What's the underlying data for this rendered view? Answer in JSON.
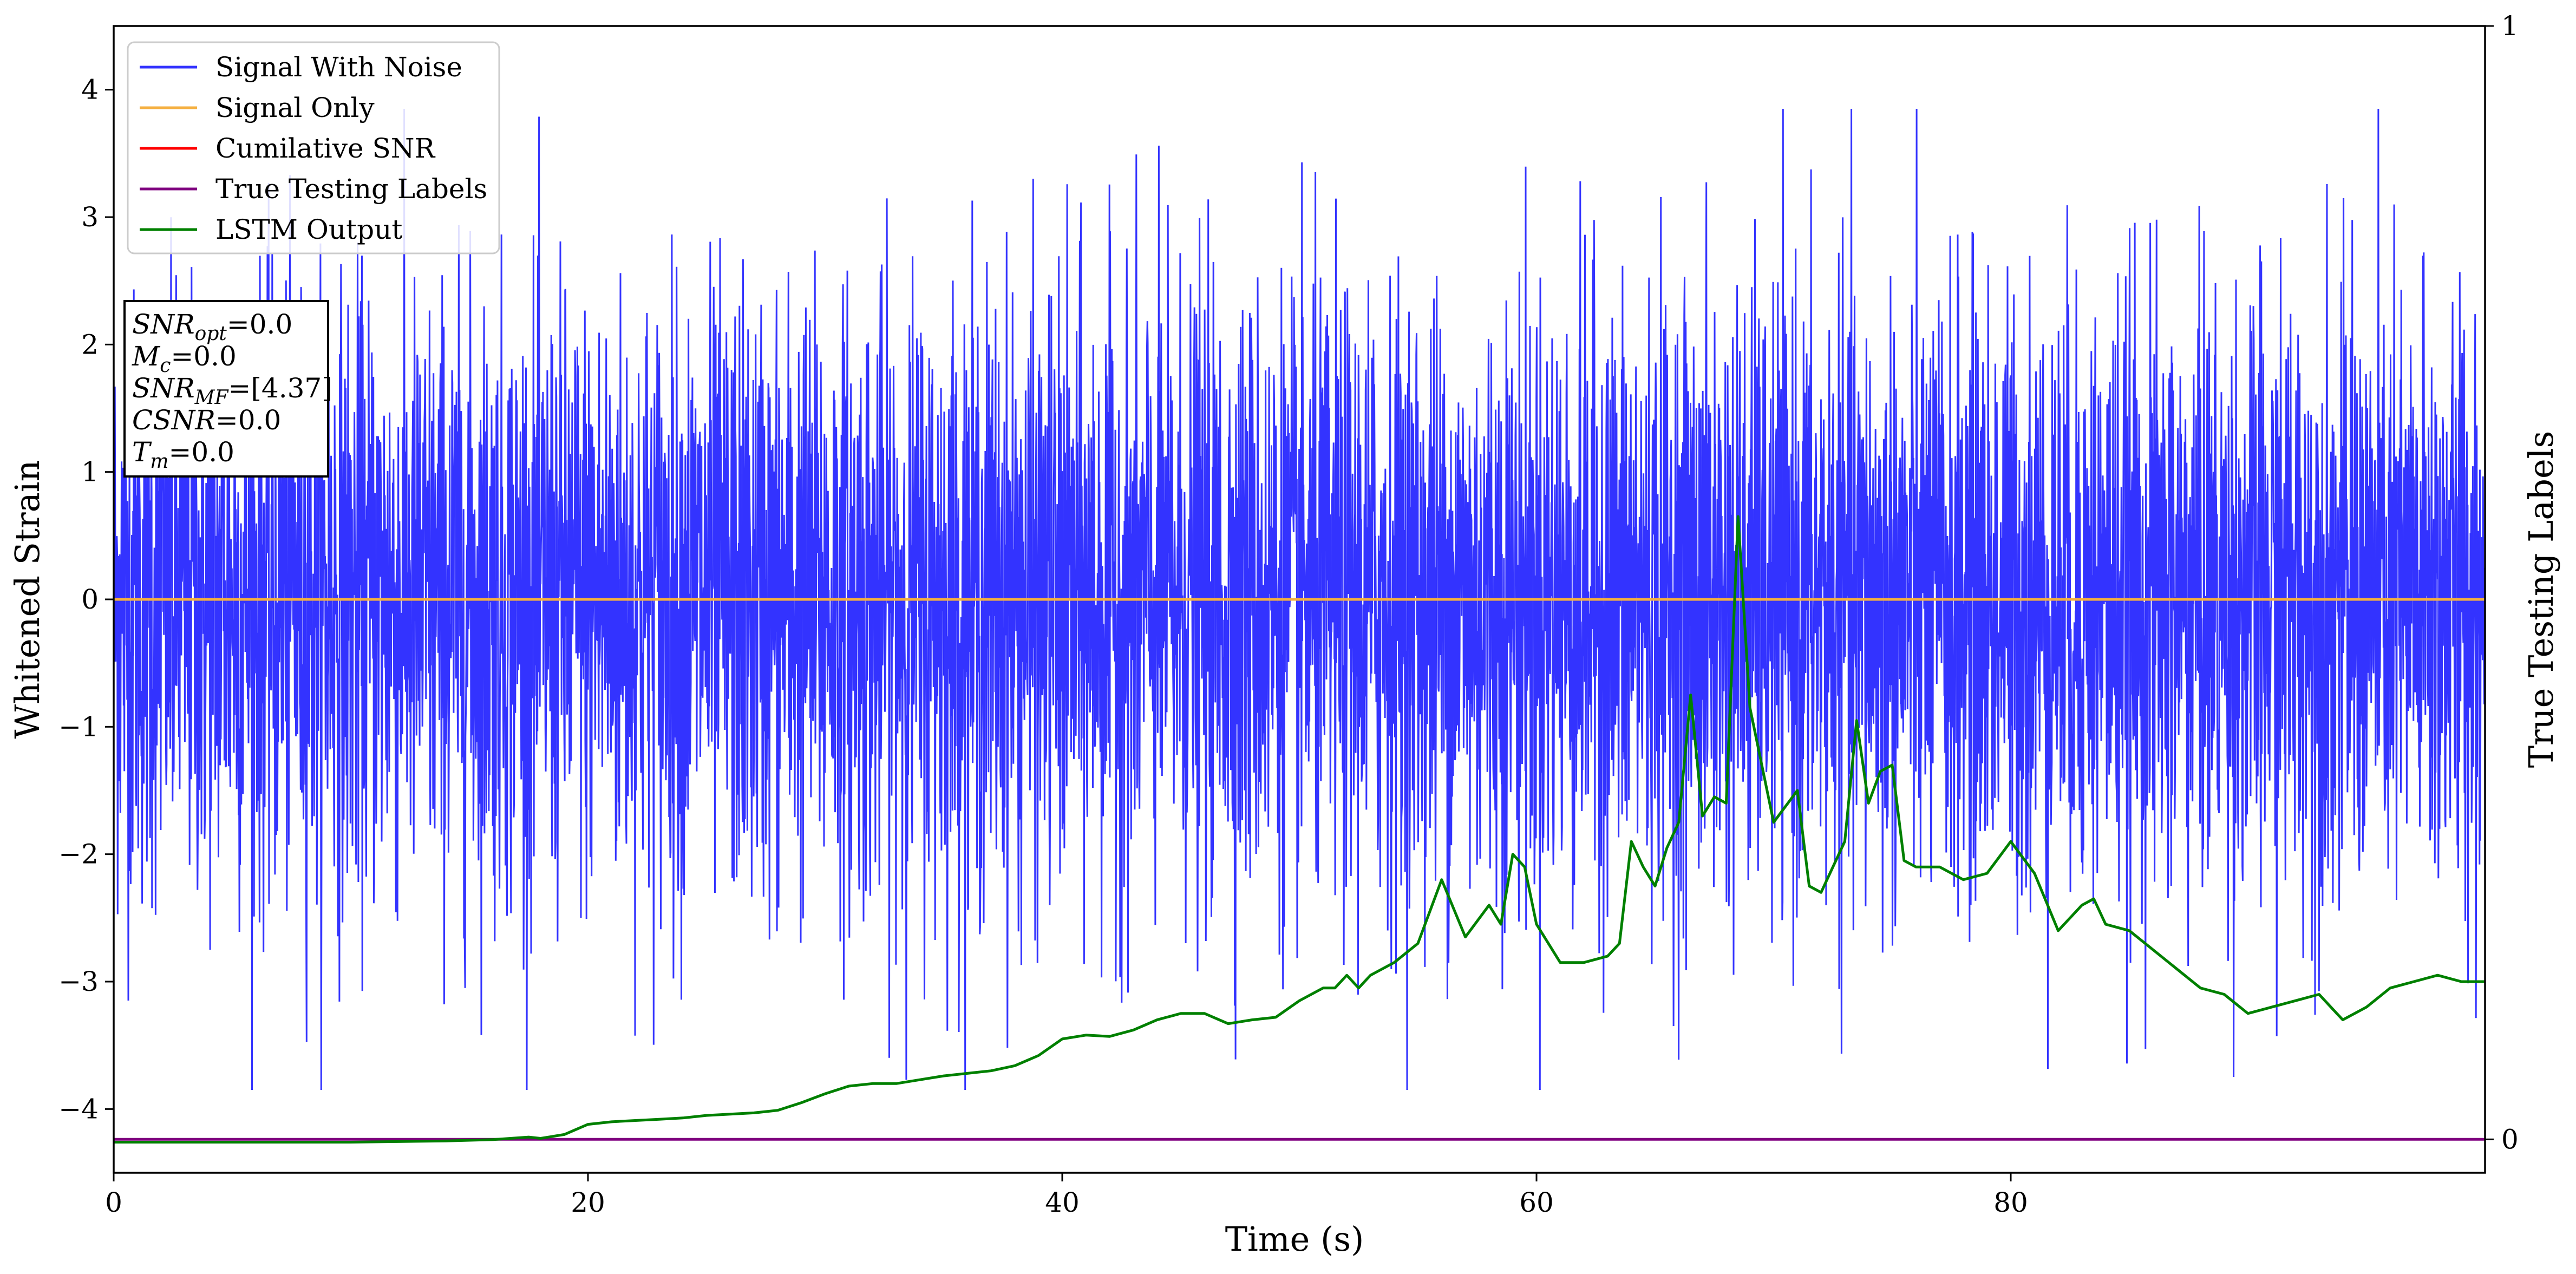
{
  "chart_data": {
    "type": "line",
    "xlabel": "Time (s)",
    "ylabel": "Whitened Strain",
    "y2label": "True Testing Labels",
    "xlim": [
      0,
      100
    ],
    "ylim": [
      -4.5,
      4.5
    ],
    "y2lim": [
      -0.03,
      1.0
    ],
    "x_ticks": [
      0,
      20,
      40,
      60,
      80
    ],
    "y_ticks": [
      -4,
      -3,
      -2,
      -1,
      0,
      1,
      2,
      3,
      4
    ],
    "y2_ticks": [
      0,
      1
    ],
    "legend_position": "upper-left",
    "series": [
      {
        "name": "Signal With Noise",
        "color": "#3333ff",
        "axis": "left",
        "description_values": {
          "center": 0.0,
          "typical_amplitude": 1.2,
          "max_peak": 3.85,
          "min_peak": -3.85
        }
      },
      {
        "name": "Signal Only",
        "color": "#f5b041",
        "axis": "left",
        "x": [
          0,
          100
        ],
        "y": [
          0,
          0
        ]
      },
      {
        "name": "Cumilative SNR",
        "color": "#ff0000",
        "axis": "left",
        "x": [
          0,
          100
        ],
        "y": [
          0,
          0
        ]
      },
      {
        "name": "True Testing Labels",
        "color": "#800080",
        "axis": "right",
        "x": [
          0,
          100
        ],
        "y": [
          0,
          0
        ]
      },
      {
        "name": "LSTM Output",
        "color": "#008000",
        "axis": "left",
        "x": [
          0,
          5,
          10,
          14,
          16,
          17.5,
          18,
          19,
          20,
          21,
          22,
          23,
          24,
          25,
          26,
          27,
          28,
          29,
          30,
          31,
          32,
          33,
          34,
          35,
          36,
          37,
          38,
          39,
          40,
          41,
          42,
          43,
          44,
          45,
          46,
          47,
          48,
          49,
          50,
          51,
          51.5,
          52,
          52.5,
          53,
          54,
          55,
          56,
          57,
          58,
          58.5,
          59,
          59.5,
          60,
          61,
          62,
          63,
          63.5,
          64,
          64.5,
          65,
          65.5,
          66,
          66.5,
          67,
          67.5,
          68,
          68.5,
          69,
          70,
          71,
          71.5,
          72,
          73,
          73.5,
          74,
          74.5,
          75,
          75.5,
          76,
          77,
          78,
          79,
          80,
          81,
          82,
          83,
          83.5,
          84,
          85,
          86,
          87,
          88,
          89,
          90,
          91,
          92,
          93,
          94,
          95,
          96,
          97,
          98,
          99,
          100
        ],
        "y": [
          -4.26,
          -4.26,
          -4.26,
          -4.25,
          -4.24,
          -4.22,
          -4.23,
          -4.2,
          -4.12,
          -4.1,
          -4.09,
          -4.08,
          -4.07,
          -4.05,
          -4.04,
          -4.03,
          -4.01,
          -3.95,
          -3.88,
          -3.82,
          -3.8,
          -3.8,
          -3.77,
          -3.74,
          -3.72,
          -3.7,
          -3.66,
          -3.58,
          -3.45,
          -3.42,
          -3.43,
          -3.38,
          -3.3,
          -3.25,
          -3.25,
          -3.33,
          -3.3,
          -3.28,
          -3.15,
          -3.05,
          -3.05,
          -2.95,
          -3.05,
          -2.95,
          -2.85,
          -2.7,
          -2.2,
          -2.65,
          -2.4,
          -2.55,
          -2.0,
          -2.1,
          -2.55,
          -2.85,
          -2.85,
          -2.8,
          -2.7,
          -1.9,
          -2.1,
          -2.25,
          -1.95,
          -1.75,
          -0.75,
          -1.7,
          -1.55,
          -1.6,
          0.65,
          -0.85,
          -1.75,
          -1.5,
          -2.25,
          -2.3,
          -1.9,
          -0.95,
          -1.6,
          -1.35,
          -1.3,
          -2.05,
          -2.1,
          -2.1,
          -2.2,
          -2.15,
          -1.9,
          -2.15,
          -2.6,
          -2.4,
          -2.35,
          -2.55,
          -2.6,
          -2.75,
          -2.9,
          -3.05,
          -3.1,
          -3.25,
          -3.2,
          -3.15,
          -3.1,
          -3.3,
          -3.2,
          -3.05,
          -3.0,
          -2.95,
          -3.0,
          -3.0
        ]
      }
    ],
    "annotation": {
      "lines": [
        {
          "var": "SNR",
          "sub": "opt",
          "text": "=0.0"
        },
        {
          "var": "M",
          "sub": "c",
          "text": "=0.0"
        },
        {
          "var": "SNR",
          "sub": "MF",
          "text": "=[4.37]"
        },
        {
          "var": "CSNR",
          "sub": "",
          "text": "=0.0"
        },
        {
          "var": "T",
          "sub": "m",
          "text": "=0.0"
        }
      ]
    }
  }
}
